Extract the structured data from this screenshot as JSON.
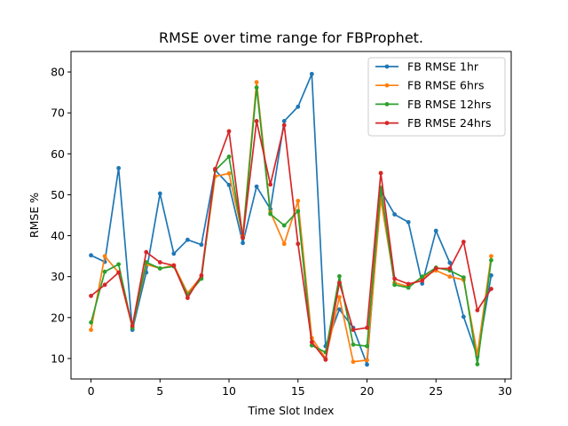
{
  "chart_data": {
    "type": "line",
    "title": "RMSE over time range for FBProphet.",
    "xlabel": "Time Slot Index",
    "ylabel": "RMSE %",
    "xlim": [
      -1.45,
      30.45
    ],
    "ylim": [
      5,
      85
    ],
    "xticks": [
      0,
      5,
      10,
      15,
      20,
      25,
      30
    ],
    "yticks": [
      10,
      20,
      30,
      40,
      50,
      60,
      70,
      80
    ],
    "grid": false,
    "legend_position": "top-right",
    "x": [
      0,
      1,
      2,
      3,
      4,
      5,
      6,
      7,
      8,
      9,
      10,
      11,
      12,
      13,
      14,
      15,
      16,
      17,
      18,
      19,
      20,
      21,
      22,
      23,
      24,
      25,
      26,
      27,
      28,
      29
    ],
    "series": [
      {
        "name": "FB RMSE 1hr",
        "color": "#1f77b4",
        "values": [
          35.2,
          33.6,
          56.5,
          17.0,
          31.0,
          50.3,
          35.6,
          39.0,
          37.8,
          56.0,
          52.4,
          38.2,
          52.0,
          46.5,
          68.0,
          71.5,
          79.5,
          13.0,
          22.0,
          17.5,
          8.5,
          51.0,
          45.2,
          43.3,
          28.3,
          41.2,
          33.4,
          20.2,
          10.5,
          30.3
        ]
      },
      {
        "name": "FB RMSE 6hrs",
        "color": "#ff7f0e",
        "values": [
          17.0,
          35.0,
          31.0,
          17.5,
          33.0,
          32.0,
          32.8,
          26.0,
          30.0,
          54.5,
          55.2,
          40.0,
          77.5,
          45.8,
          38.0,
          48.5,
          15.0,
          10.0,
          25.0,
          9.2,
          9.6,
          49.0,
          28.5,
          27.6,
          29.8,
          31.5,
          30.0,
          29.2,
          11.0,
          35.0
        ]
      },
      {
        "name": "FB RMSE 12hrs",
        "color": "#2ca02c",
        "values": [
          18.8,
          31.2,
          33.0,
          17.5,
          33.5,
          32.0,
          32.5,
          25.5,
          29.5,
          56.0,
          59.3,
          39.5,
          76.2,
          45.3,
          42.5,
          46.0,
          13.2,
          11.5,
          30.1,
          13.4,
          13.0,
          51.7,
          28.0,
          27.3,
          30.0,
          32.2,
          31.5,
          29.8,
          8.6,
          34.0
        ]
      },
      {
        "name": "FB RMSE 24hrs",
        "color": "#d62728",
        "values": [
          25.3,
          28.0,
          31.0,
          18.0,
          36.0,
          33.5,
          32.7,
          24.8,
          30.3,
          56.3,
          65.5,
          39.5,
          68.0,
          52.5,
          67.0,
          38.0,
          14.0,
          9.7,
          28.5,
          17.0,
          17.5,
          55.3,
          29.5,
          28.2,
          29.0,
          32.0,
          32.0,
          38.5,
          21.8,
          27.0
        ]
      }
    ]
  }
}
